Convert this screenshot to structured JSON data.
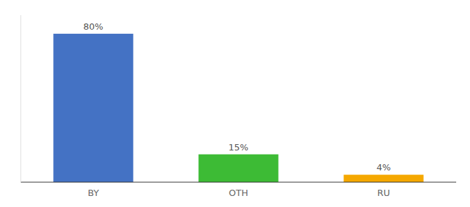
{
  "chart_data": {
    "type": "bar",
    "categories": [
      "BY",
      "OTH",
      "RU"
    ],
    "values": [
      80,
      15,
      4
    ],
    "value_labels": [
      "80%",
      "15%",
      "4%"
    ],
    "colors": [
      "#4472c4",
      "#3dbb35",
      "#f5a800"
    ],
    "ylim": [
      0,
      90
    ],
    "data_labels": true,
    "tick_labels": "x",
    "grid": false
  }
}
